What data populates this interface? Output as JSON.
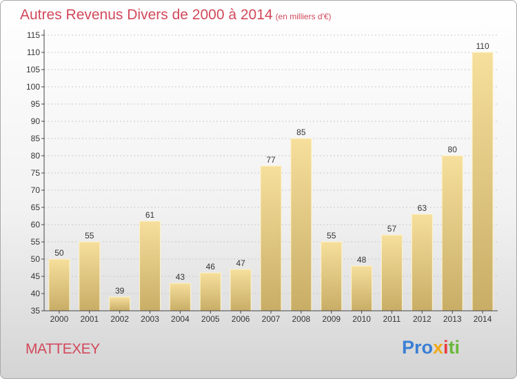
{
  "header": {
    "title": "Autres Revenus Divers de 2000 à 2014",
    "subtitle": "(en milliers d'€)"
  },
  "footer": {
    "town": "MATTEXEY",
    "logo_parts": [
      "Pro",
      "x",
      "i",
      "ti"
    ]
  },
  "colors": {
    "title": "#d2485a",
    "bar_light": "#f6df9c",
    "bar_dark": "#c8ad66",
    "logo": [
      "#3a7fd5",
      "#f0a818",
      "#e83c3c",
      "#6ab83a"
    ]
  },
  "chart_data": {
    "type": "bar",
    "title": "Autres Revenus Divers de 2000 à 2014",
    "subtitle": "(en milliers d'€)",
    "categories": [
      "2000",
      "2001",
      "2002",
      "2003",
      "2004",
      "2005",
      "2006",
      "2007",
      "2008",
      "2009",
      "2010",
      "2011",
      "2012",
      "2013",
      "2014"
    ],
    "values": [
      50,
      55,
      39,
      61,
      43,
      46,
      47,
      77,
      85,
      55,
      48,
      57,
      63,
      80,
      110
    ],
    "data_labels": [
      "50",
      "55",
      "39",
      "61",
      "43",
      "46",
      "47",
      "77",
      "85",
      "55",
      "48",
      "57",
      "63",
      "80",
      "110"
    ],
    "y_ticks": [
      "35",
      "40",
      "45",
      "50",
      "55",
      "60",
      "65",
      "70",
      "75",
      "80",
      "85",
      "90",
      "95",
      "100",
      "105",
      "110",
      "115"
    ],
    "ylim": [
      35,
      115
    ],
    "y_step": 5,
    "grid": true,
    "xlabel": "",
    "ylabel": ""
  }
}
